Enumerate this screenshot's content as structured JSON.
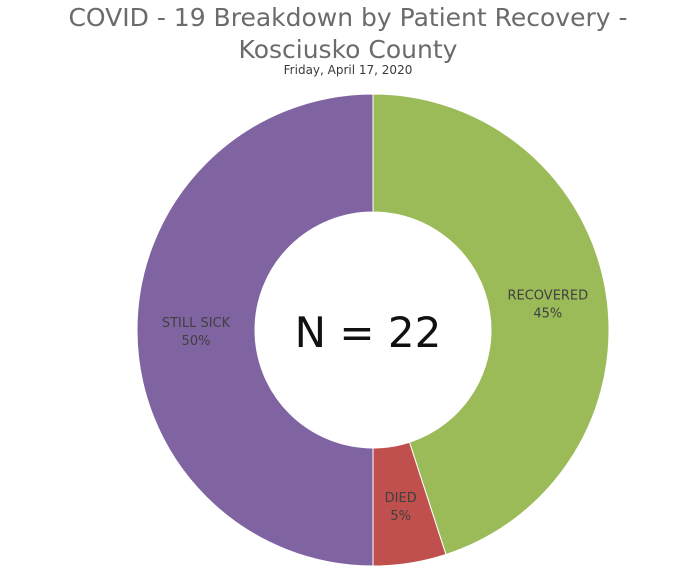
{
  "chart": {
    "title_line1": "COVID - 19 Breakdown by Patient Recovery -",
    "title_line2": "Kosciusko County",
    "subtitle": "Friday, April 17, 2020",
    "center_label": "N = 22"
  },
  "chart_data": {
    "type": "pie",
    "donut": true,
    "title": "COVID - 19 Breakdown by Patient Recovery - Kosciusko County",
    "subtitle": "Friday, April 17, 2020",
    "total_label": "N = 22",
    "slices": [
      {
        "label": "RECOVERED",
        "value": 45,
        "value_label": "45%",
        "color": "#9bbb59"
      },
      {
        "label": "DIED",
        "value": 5,
        "value_label": "5%",
        "color": "#c0504d"
      },
      {
        "label": "STILL SICK",
        "value": 50,
        "value_label": "50%",
        "color": "#8064a2"
      }
    ]
  }
}
